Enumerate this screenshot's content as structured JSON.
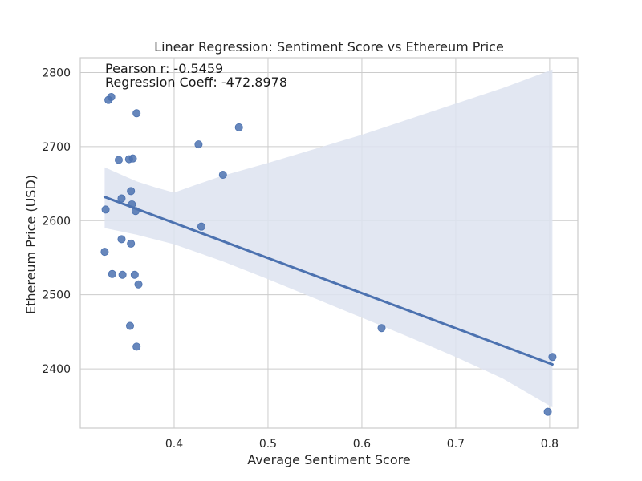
{
  "chart_data": {
    "type": "scatter",
    "title": "Linear Regression: Sentiment Score vs Ethereum Price",
    "xlabel": "Average Sentiment Score",
    "ylabel": "Ethereum Price (USD)",
    "xlim": [
      0.3,
      0.83
    ],
    "ylim": [
      2320,
      2820
    ],
    "xticks": [
      0.4,
      0.5,
      0.6,
      0.7,
      0.8
    ],
    "xtick_labels": [
      "0.4",
      "0.5",
      "0.6",
      "0.7",
      "0.8"
    ],
    "yticks": [
      2400,
      2500,
      2600,
      2700,
      2800
    ],
    "ytick_labels": [
      "2400",
      "2500",
      "2600",
      "2700",
      "2800"
    ],
    "grid": true,
    "annotations": [
      "Pearson r: -0.5459",
      "Regression Coeff: -472.8978"
    ],
    "points": [
      {
        "x": 0.333,
        "y": 2767
      },
      {
        "x": 0.33,
        "y": 2763
      },
      {
        "x": 0.36,
        "y": 2745
      },
      {
        "x": 0.469,
        "y": 2726
      },
      {
        "x": 0.426,
        "y": 2703
      },
      {
        "x": 0.341,
        "y": 2682
      },
      {
        "x": 0.352,
        "y": 2683
      },
      {
        "x": 0.356,
        "y": 2684
      },
      {
        "x": 0.452,
        "y": 2662
      },
      {
        "x": 0.354,
        "y": 2640
      },
      {
        "x": 0.344,
        "y": 2630
      },
      {
        "x": 0.355,
        "y": 2622
      },
      {
        "x": 0.327,
        "y": 2615
      },
      {
        "x": 0.359,
        "y": 2613
      },
      {
        "x": 0.429,
        "y": 2592
      },
      {
        "x": 0.344,
        "y": 2575
      },
      {
        "x": 0.354,
        "y": 2569
      },
      {
        "x": 0.326,
        "y": 2558
      },
      {
        "x": 0.334,
        "y": 2528
      },
      {
        "x": 0.345,
        "y": 2527
      },
      {
        "x": 0.358,
        "y": 2527
      },
      {
        "x": 0.362,
        "y": 2514
      },
      {
        "x": 0.353,
        "y": 2458
      },
      {
        "x": 0.621,
        "y": 2455
      },
      {
        "x": 0.36,
        "y": 2430
      },
      {
        "x": 0.803,
        "y": 2416
      },
      {
        "x": 0.798,
        "y": 2342
      }
    ],
    "regression_line": [
      {
        "x": 0.326,
        "y": 2632
      },
      {
        "x": 0.803,
        "y": 2406
      }
    ],
    "confidence_band": {
      "upper": [
        {
          "x": 0.326,
          "y": 2672
        },
        {
          "x": 0.36,
          "y": 2653
        },
        {
          "x": 0.38,
          "y": 2645
        },
        {
          "x": 0.4,
          "y": 2638
        },
        {
          "x": 0.42,
          "y": 2647
        },
        {
          "x": 0.45,
          "y": 2660
        },
        {
          "x": 0.5,
          "y": 2678
        },
        {
          "x": 0.55,
          "y": 2697
        },
        {
          "x": 0.6,
          "y": 2716
        },
        {
          "x": 0.65,
          "y": 2737
        },
        {
          "x": 0.7,
          "y": 2758
        },
        {
          "x": 0.75,
          "y": 2779
        },
        {
          "x": 0.803,
          "y": 2804
        }
      ],
      "lower": [
        {
          "x": 0.326,
          "y": 2590
        },
        {
          "x": 0.36,
          "y": 2581
        },
        {
          "x": 0.4,
          "y": 2568
        },
        {
          "x": 0.45,
          "y": 2546
        },
        {
          "x": 0.5,
          "y": 2521
        },
        {
          "x": 0.55,
          "y": 2495
        },
        {
          "x": 0.6,
          "y": 2469
        },
        {
          "x": 0.65,
          "y": 2443
        },
        {
          "x": 0.7,
          "y": 2416
        },
        {
          "x": 0.75,
          "y": 2387
        },
        {
          "x": 0.803,
          "y": 2348
        }
      ]
    },
    "colors": {
      "points": "#4c72b0",
      "line": "#4c72b0",
      "band": "#dde3f0",
      "grid": "#cccccc",
      "frame": "#cccccc",
      "background": "#ffffff"
    }
  }
}
